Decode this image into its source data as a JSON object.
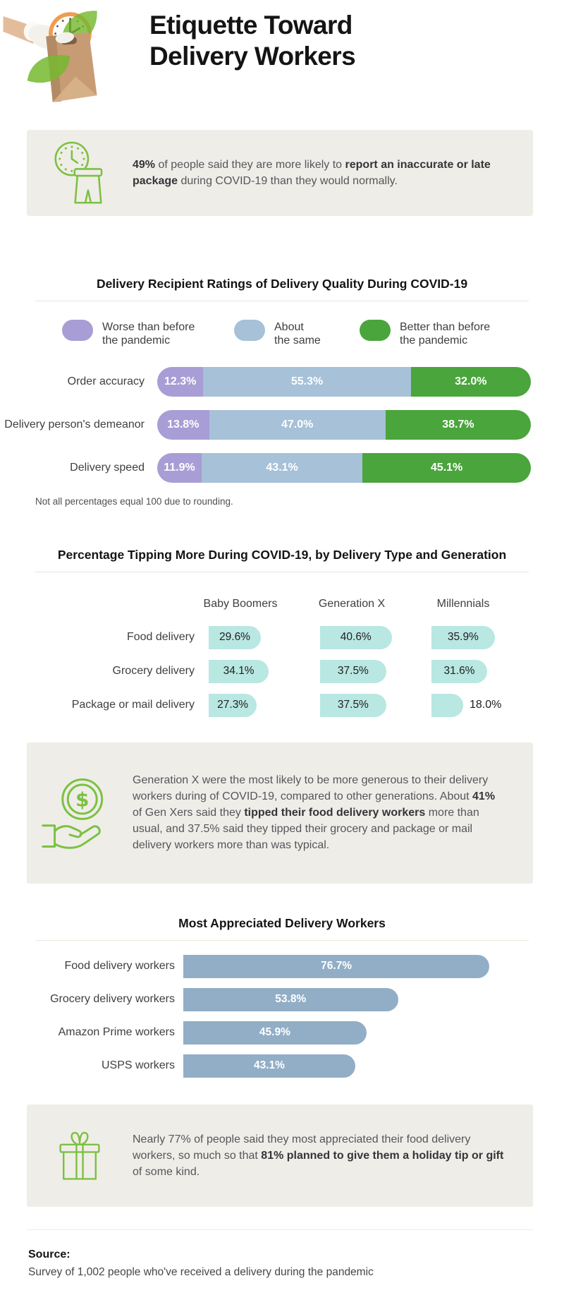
{
  "header": {
    "title_line1": "Etiquette Toward",
    "title_line2": "Delivery Workers",
    "illustration": "gloved-hand-delivering-paper-bag-with-clock-and-leaves"
  },
  "callouts": [
    {
      "icon": "clock-package-icon",
      "segments": [
        {
          "t": "49%",
          "b": true
        },
        {
          "t": " of people said they are more likely to ",
          "b": false
        },
        {
          "t": "report an inaccurate or late package",
          "b": true
        },
        {
          "t": " during COVID-19 than they would normally.",
          "b": false
        }
      ]
    },
    {
      "icon": "dollar-hand-icon",
      "segments": [
        {
          "t": "Generation X were the most likely to be more generous to their delivery workers during of COVID-19, compared to other generations. About ",
          "b": false
        },
        {
          "t": "41%",
          "b": true
        },
        {
          "t": " of Gen Xers said they ",
          "b": false
        },
        {
          "t": "tipped their food delivery workers",
          "b": true
        },
        {
          "t": " more than usual, and 37.5% said they tipped their grocery and package or mail delivery workers more than was typical.",
          "b": false
        }
      ]
    },
    {
      "icon": "gift-icon",
      "segments": [
        {
          "t": "Nearly 77% of people said they most appreciated their food delivery workers, so much so that ",
          "b": false
        },
        {
          "t": "81% planned to give them a holiday tip or gift",
          "b": true
        },
        {
          "t": " of some kind.",
          "b": false
        }
      ]
    }
  ],
  "chart_data": [
    {
      "type": "bar",
      "variant": "stacked-horizontal",
      "title": "Delivery Recipient Ratings of Delivery Quality During COVID-19",
      "categories": [
        "Order accuracy",
        "Delivery person's demeanor",
        "Delivery speed"
      ],
      "series": [
        {
          "name": "Worse than before the pandemic",
          "color": "#a89dd5",
          "values": [
            12.3,
            13.8,
            11.9
          ]
        },
        {
          "name": "About the same",
          "color": "#a6c1d8",
          "values": [
            55.3,
            47.0,
            43.1
          ]
        },
        {
          "name": "Better than before the pandemic",
          "color": "#4aa53c",
          "values": [
            32.0,
            38.7,
            45.1
          ]
        }
      ],
      "legend": [
        {
          "label": "Worse than before\nthe pandemic",
          "color": "#a89dd5"
        },
        {
          "label": "About\nthe same",
          "color": "#a6c1d8"
        },
        {
          "label": "Better than before\nthe pandemic",
          "color": "#4aa53c"
        }
      ],
      "value_suffix": "%",
      "legend_position": "top",
      "footnote": "Not all percentages equal 100 due to rounding."
    },
    {
      "type": "bar",
      "variant": "pill-table",
      "title": "Percentage Tipping More During COVID-19, by Delivery Type and Generation",
      "columns": [
        "Baby Boomers",
        "Generation X",
        "Millennials"
      ],
      "rows": [
        {
          "label": "Food delivery",
          "values": [
            29.6,
            40.6,
            35.9
          ]
        },
        {
          "label": "Grocery delivery",
          "values": [
            34.1,
            37.5,
            31.6
          ]
        },
        {
          "label": "Package or mail delivery",
          "values": [
            27.3,
            37.5,
            18.0
          ]
        }
      ],
      "pill_color": "#b9e7e2",
      "value_suffix": "%"
    },
    {
      "type": "bar",
      "variant": "horizontal",
      "title": "Most Appreciated Delivery Workers",
      "categories": [
        "Food delivery workers",
        "Grocery delivery workers",
        "Amazon Prime workers",
        "USPS workers"
      ],
      "values": [
        76.7,
        53.8,
        45.9,
        43.1
      ],
      "bar_color": "#91aec6",
      "value_suffix": "%"
    }
  ],
  "source": {
    "label": "Source:",
    "text": "Survey of 1,002 people who've received a delivery during the pandemic"
  },
  "colors": {
    "accent_green": "#7cc142",
    "chart_green": "#4aa53c",
    "chart_purple": "#a89dd5",
    "chart_blue": "#a6c1d8",
    "chart_teal": "#b9e7e2",
    "chart_slate": "#91aec6",
    "callout_bg": "#efede8"
  }
}
